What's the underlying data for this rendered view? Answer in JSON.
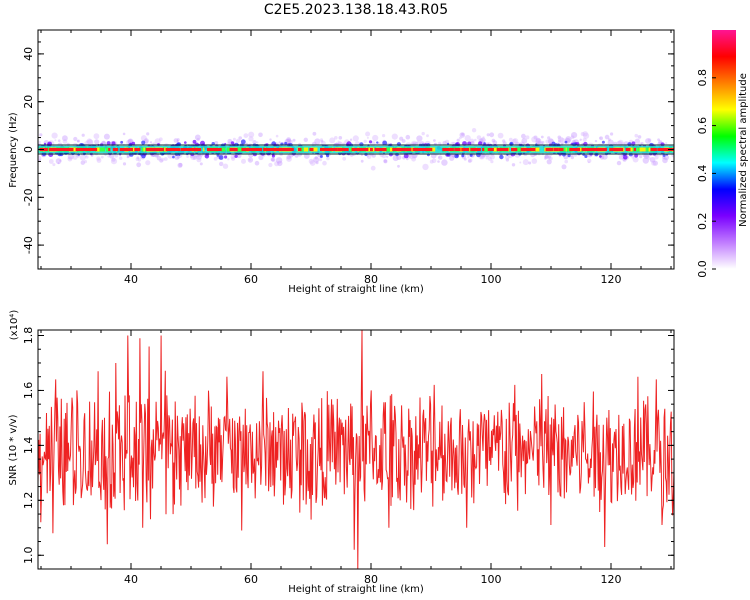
{
  "title": "C2E5.2023.138.18.43.R05",
  "chart_data": [
    {
      "type": "heatmap",
      "name": "spectrogram",
      "xlabel": "Height of straight line (km)",
      "ylabel": "Frequency (Hz)",
      "xlim": [
        24.5,
        130.5
      ],
      "ylim": [
        -50,
        50
      ],
      "xticks": [
        40,
        60,
        80,
        100,
        120
      ],
      "yticks": [
        -40,
        -20,
        0,
        20,
        40
      ],
      "ytick_labels": [
        "-40",
        "-20",
        "0",
        "20",
        "40"
      ],
      "band_center_hz": 0,
      "band_halfwidth_hz": 2.5,
      "colorbar": {
        "label": "Normalized spectral amplitude",
        "range": [
          0,
          1
        ],
        "ticks": [
          0.0,
          0.2,
          0.4,
          0.6,
          0.8
        ],
        "tick_labels": [
          "0.0",
          "0.2",
          "0.4",
          "0.6",
          "0.8"
        ],
        "colors": [
          "#ffffff",
          "#c07cff",
          "#7a00ff",
          "#0000ff",
          "#00ffff",
          "#00ff00",
          "#ffff00",
          "#ff7f00",
          "#ff0000",
          "#ff1493"
        ]
      },
      "grid": false
    },
    {
      "type": "line",
      "name": "snr",
      "xlabel": "Height of straight line (km)",
      "ylabel": "SNR (10 * v/v)",
      "y_multiplier": "(x10⁴)",
      "xlim": [
        24.5,
        130.5
      ],
      "ylim": [
        0.95,
        1.82
      ],
      "xticks": [
        40,
        60,
        80,
        100,
        120
      ],
      "yticks": [
        1.0,
        1.2,
        1.4,
        1.6,
        1.8
      ],
      "ytick_labels": [
        "1.0",
        "1.2",
        "1.4",
        "1.6",
        "1.8"
      ],
      "line_color": "#ee2222",
      "mean_value": 1.38,
      "peaks": [
        {
          "x": 24.6,
          "y": 1.42
        },
        {
          "x": 27.5,
          "y": 1.64
        },
        {
          "x": 31.0,
          "y": 1.6
        },
        {
          "x": 34.5,
          "y": 1.67
        },
        {
          "x": 37.5,
          "y": 1.7
        },
        {
          "x": 39.5,
          "y": 1.8
        },
        {
          "x": 41.5,
          "y": 1.79
        },
        {
          "x": 43.0,
          "y": 1.76
        },
        {
          "x": 45.0,
          "y": 1.8
        },
        {
          "x": 56.0,
          "y": 1.65
        },
        {
          "x": 62.0,
          "y": 1.67
        },
        {
          "x": 78.5,
          "y": 1.82
        },
        {
          "x": 80.0,
          "y": 1.6
        },
        {
          "x": 90.5,
          "y": 1.62
        },
        {
          "x": 104.0,
          "y": 1.62
        },
        {
          "x": 108.5,
          "y": 1.66
        },
        {
          "x": 124.5,
          "y": 1.65
        },
        {
          "x": 127.5,
          "y": 1.64
        }
      ],
      "troughs": [
        {
          "x": 25.0,
          "y": 1.12
        },
        {
          "x": 27.0,
          "y": 1.08
        },
        {
          "x": 36.0,
          "y": 1.04
        },
        {
          "x": 42.0,
          "y": 1.1
        },
        {
          "x": 47.0,
          "y": 1.15
        },
        {
          "x": 58.5,
          "y": 1.09
        },
        {
          "x": 70.0,
          "y": 1.13
        },
        {
          "x": 77.2,
          "y": 1.02
        },
        {
          "x": 77.8,
          "y": 0.95
        },
        {
          "x": 83.0,
          "y": 1.1
        },
        {
          "x": 96.0,
          "y": 1.1
        },
        {
          "x": 110.0,
          "y": 1.11
        },
        {
          "x": 119.0,
          "y": 1.03
        },
        {
          "x": 128.5,
          "y": 1.11
        }
      ],
      "grid": false
    }
  ]
}
